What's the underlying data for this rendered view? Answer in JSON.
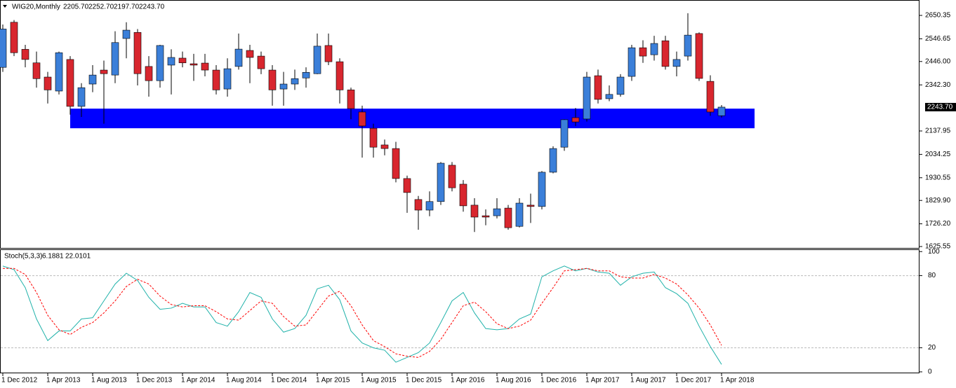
{
  "chart_data": [
    {
      "type": "candlestick",
      "title": "WIG20,Monthly",
      "ohlc_labels": [
        "2205.70",
        "2252.70",
        "2197.70",
        "2243.70"
      ],
      "categories": [
        "1 Dec 2012",
        null,
        null,
        null,
        "1 Apr 2013",
        null,
        null,
        null,
        "1 Aug 2013",
        null,
        null,
        null,
        "1 Dec 2013",
        null,
        null,
        null,
        "1 Apr 2014",
        null,
        null,
        null,
        "1 Aug 2014",
        null,
        null,
        null,
        "1 Dec 2014",
        null,
        null,
        null,
        "1 Apr 2015",
        null,
        null,
        null,
        "1 Aug 2015",
        null,
        null,
        null,
        "1 Dec 2015",
        null,
        null,
        null,
        "1 Apr 2016",
        null,
        null,
        null,
        "1 Aug 2016",
        null,
        null,
        null,
        "1 Dec 2016",
        null,
        null,
        null,
        "1 Apr 2017",
        null,
        null,
        null,
        "1 Aug 2017",
        null,
        null,
        null,
        "1 Dec 2017",
        null,
        null,
        null,
        "1 Apr 2018"
      ],
      "open": [
        2420,
        2620,
        2500,
        2440,
        2377,
        2315,
        2455,
        2247,
        2346,
        2408,
        2386,
        2548,
        2575,
        2424,
        2361,
        2430,
        2461,
        2436,
        2439,
        2408,
        2324,
        2424,
        2495,
        2470,
        2408,
        2324,
        2346,
        2373,
        2392,
        2517,
        2445,
        2320,
        2222,
        2150,
        2076,
        2060,
        1927,
        1834,
        1787,
        1825,
        1986,
        1902,
        1809,
        1762,
        1762,
        1796,
        1715,
        1809,
        1803,
        1955,
        2066,
        2197,
        2191,
        2383,
        2281,
        2300,
        2380,
        2507,
        2476,
        2538,
        2424,
        2470,
        2570,
        2358,
        2205.7
      ],
      "high": [
        2610,
        2630,
        2520,
        2490,
        2400,
        2490,
        2470,
        2350,
        2430,
        2450,
        2580,
        2620,
        2590,
        2470,
        2520,
        2500,
        2490,
        2480,
        2480,
        2430,
        2460,
        2570,
        2520,
        2490,
        2430,
        2400,
        2410,
        2420,
        2570,
        2570,
        2460,
        2330,
        2250,
        2170,
        2100,
        2090,
        1940,
        1850,
        1870,
        2000,
        2000,
        1920,
        1840,
        1790,
        1840,
        1810,
        1840,
        1860,
        1960,
        2070,
        2190,
        2240,
        2400,
        2410,
        2340,
        2390,
        2520,
        2540,
        2560,
        2560,
        2490,
        2660,
        2575,
        2385,
        2252.7
      ],
      "low": [
        2400,
        2470,
        2420,
        2330,
        2260,
        2300,
        2210,
        2200,
        2310,
        2170,
        2350,
        2460,
        2340,
        2290,
        2330,
        2300,
        2420,
        2360,
        2380,
        2300,
        2290,
        2410,
        2350,
        2390,
        2250,
        2250,
        2320,
        2330,
        2390,
        2430,
        2260,
        2190,
        2020,
        2020,
        2030,
        1910,
        1775,
        1700,
        1760,
        1810,
        1870,
        1780,
        1690,
        1720,
        1750,
        1700,
        1710,
        1730,
        1790,
        1950,
        2050,
        2160,
        2180,
        2260,
        2270,
        2290,
        2360,
        2440,
        2450,
        2410,
        2380,
        2450,
        2360,
        2205,
        2197.7
      ],
      "close": [
        2590,
        2485,
        2455,
        2370,
        2320,
        2485,
        2247,
        2330,
        2386,
        2392,
        2530,
        2585,
        2392,
        2361,
        2517,
        2464,
        2440,
        2430,
        2408,
        2320,
        2414,
        2501,
        2464,
        2414,
        2320,
        2346,
        2370,
        2398,
        2514,
        2445,
        2320,
        2237,
        2160,
        2066,
        2060,
        1927,
        1865,
        1787,
        1825,
        1995,
        1886,
        1806,
        1756,
        1756,
        1793,
        1709,
        1818,
        1803,
        1955,
        2060,
        2188,
        2178,
        2377,
        2278,
        2300,
        2377,
        2507,
        2470,
        2526,
        2424,
        2455,
        2563,
        2371,
        2222,
        2243.7
      ],
      "up_color": "#3b7fd9",
      "down_color": "#d8262e",
      "ylim": [
        1616.2,
        2712.5
      ],
      "yticks": [
        2650.35,
        2546.65,
        {
          "value": 2446,
          "label": "2446.00"
        },
        {
          "value": 2342.3,
          "label": "2342.30"
        },
        2137.95,
        2034.25,
        1930.55,
        {
          "value": 1829.9,
          "label": "1829.90"
        },
        {
          "value": 1726.2,
          "label": "1726.20"
        },
        1625.55
      ],
      "current_price": {
        "value": 2243.7,
        "label": "2243.70"
      },
      "zone": {
        "high": 2237,
        "low": 2150,
        "color": "#0000ff"
      }
    },
    {
      "type": "line",
      "title": "Stoch(5,3,3)",
      "series": [
        {
          "color": "#20b2aa",
          "dash": false,
          "values": [
            88,
            85,
            70,
            44,
            26,
            34,
            34,
            44,
            45,
            59,
            73,
            82,
            76,
            62,
            52,
            53,
            57,
            54,
            54,
            41,
            38,
            50,
            66,
            62,
            44,
            33,
            36,
            47,
            69,
            72,
            60,
            34,
            24,
            20,
            18,
            8,
            12,
            16,
            24,
            41,
            59,
            66,
            49,
            36,
            35,
            36,
            44,
            48,
            79,
            84,
            88,
            84,
            86,
            83,
            82,
            72,
            79,
            82,
            83,
            70,
            65,
            57,
            38,
            21,
            6.1881
          ]
        },
        {
          "color": "#ff0000",
          "dash": true,
          "values": [
            86,
            86,
            81,
            66,
            47,
            35,
            31,
            37,
            41,
            49,
            59,
            71,
            77,
            73,
            63,
            56,
            54,
            55,
            55,
            50,
            44,
            43,
            51,
            59,
            57,
            46,
            38,
            39,
            51,
            63,
            67,
            55,
            39,
            26,
            21,
            15,
            13,
            12,
            17,
            27,
            41,
            55,
            58,
            50,
            40,
            36,
            38,
            43,
            57,
            70,
            84,
            85,
            86,
            84,
            84,
            79,
            78,
            78,
            81,
            78,
            73,
            64,
            53,
            39,
            22.0101
          ]
        }
      ],
      "ylim": [
        -1.2,
        101.3
      ],
      "yticks": [
        100,
        80,
        20,
        0
      ],
      "levels": [
        20,
        80
      ]
    }
  ]
}
